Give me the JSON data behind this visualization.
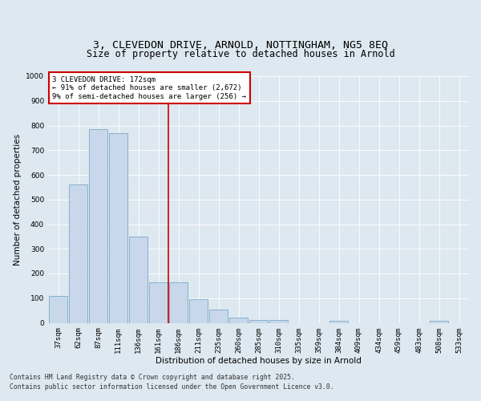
{
  "title_line1": "3, CLEVEDON DRIVE, ARNOLD, NOTTINGHAM, NG5 8EQ",
  "title_line2": "Size of property relative to detached houses in Arnold",
  "xlabel": "Distribution of detached houses by size in Arnold",
  "ylabel": "Number of detached properties",
  "categories": [
    "37sqm",
    "62sqm",
    "87sqm",
    "111sqm",
    "136sqm",
    "161sqm",
    "186sqm",
    "211sqm",
    "235sqm",
    "260sqm",
    "285sqm",
    "310sqm",
    "335sqm",
    "359sqm",
    "384sqm",
    "409sqm",
    "434sqm",
    "459sqm",
    "483sqm",
    "508sqm",
    "533sqm"
  ],
  "values": [
    110,
    560,
    785,
    770,
    348,
    165,
    165,
    95,
    55,
    20,
    12,
    10,
    0,
    0,
    8,
    0,
    0,
    0,
    0,
    8,
    0
  ],
  "bar_color": "#c8d8ea",
  "bar_edge_color": "#7aaac8",
  "vline_x_index": 5.5,
  "vline_color": "#cc0000",
  "annotation_text": "3 CLEVEDON DRIVE: 172sqm\n← 91% of detached houses are smaller (2,672)\n9% of semi-detached houses are larger (256) →",
  "annotation_box_color": "#ffffff",
  "annotation_box_edge": "#cc0000",
  "background_color": "#dde8f0",
  "plot_bg_color": "#dde8f0",
  "ylim": [
    0,
    1000
  ],
  "yticks": [
    0,
    100,
    200,
    300,
    400,
    500,
    600,
    700,
    800,
    900,
    1000
  ],
  "footer_line1": "Contains HM Land Registry data © Crown copyright and database right 2025.",
  "footer_line2": "Contains public sector information licensed under the Open Government Licence v3.0.",
  "title_fontsize": 9.5,
  "subtitle_fontsize": 8.5,
  "tick_fontsize": 6.5,
  "label_fontsize": 7.5,
  "ylabel_fontsize": 7.5,
  "footer_fontsize": 5.8,
  "annot_fontsize": 6.5
}
